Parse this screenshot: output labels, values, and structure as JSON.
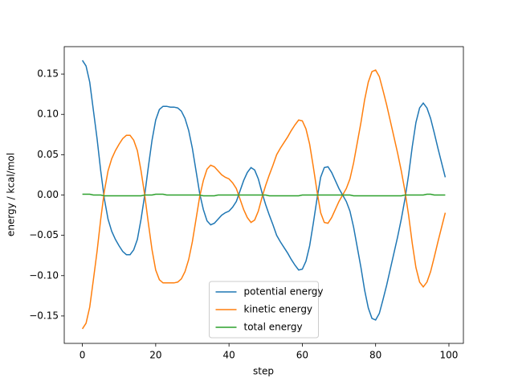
{
  "chart_data": {
    "type": "line",
    "xlabel": "step",
    "ylabel": "energy / kcal/mol",
    "x": [
      0,
      1,
      2,
      3,
      4,
      5,
      6,
      7,
      8,
      9,
      10,
      11,
      12,
      13,
      14,
      15,
      16,
      17,
      18,
      19,
      20,
      21,
      22,
      23,
      24,
      25,
      26,
      27,
      28,
      29,
      30,
      31,
      32,
      33,
      34,
      35,
      36,
      37,
      38,
      39,
      40,
      41,
      42,
      43,
      44,
      45,
      46,
      47,
      48,
      49,
      50,
      51,
      52,
      53,
      54,
      55,
      56,
      57,
      58,
      59,
      60,
      61,
      62,
      63,
      64,
      65,
      66,
      67,
      68,
      69,
      70,
      71,
      72,
      73,
      74,
      75,
      76,
      77,
      78,
      79,
      80,
      81,
      82,
      83,
      84,
      85,
      86,
      87,
      88,
      89,
      90,
      91,
      92,
      93,
      94,
      95,
      96,
      97,
      98,
      99
    ],
    "series": [
      {
        "name": "potential energy",
        "color": "#1f77b4",
        "values": [
          0.167,
          0.16,
          0.14,
          0.105,
          0.07,
          0.03,
          -0.005,
          -0.03,
          -0.045,
          -0.055,
          -0.063,
          -0.07,
          -0.074,
          -0.074,
          -0.068,
          -0.055,
          -0.03,
          0.0,
          0.035,
          0.068,
          0.093,
          0.106,
          0.11,
          0.11,
          0.109,
          0.109,
          0.108,
          0.104,
          0.095,
          0.08,
          0.058,
          0.03,
          0.002,
          -0.018,
          -0.032,
          -0.037,
          -0.035,
          -0.03,
          -0.025,
          -0.022,
          -0.02,
          -0.015,
          -0.008,
          0.005,
          0.018,
          0.028,
          0.034,
          0.031,
          0.02,
          0.003,
          -0.012,
          -0.025,
          -0.037,
          -0.05,
          -0.058,
          -0.065,
          -0.072,
          -0.08,
          -0.087,
          -0.093,
          -0.092,
          -0.082,
          -0.063,
          -0.035,
          -0.005,
          0.022,
          0.034,
          0.035,
          0.028,
          0.018,
          0.008,
          0.0,
          -0.008,
          -0.02,
          -0.04,
          -0.065,
          -0.09,
          -0.118,
          -0.14,
          -0.153,
          -0.155,
          -0.147,
          -0.13,
          -0.112,
          -0.092,
          -0.072,
          -0.052,
          -0.03,
          -0.005,
          0.025,
          0.06,
          0.09,
          0.108,
          0.114,
          0.108,
          0.095,
          0.077,
          0.058,
          0.04,
          0.022
        ]
      },
      {
        "name": "kinetic energy",
        "color": "#ff7f0e",
        "values": [
          -0.166,
          -0.159,
          -0.139,
          -0.105,
          -0.07,
          -0.03,
          0.005,
          0.03,
          0.045,
          0.055,
          0.063,
          0.07,
          0.074,
          0.074,
          0.068,
          0.055,
          0.03,
          0.0,
          -0.035,
          -0.068,
          -0.093,
          -0.105,
          -0.109,
          -0.109,
          -0.109,
          -0.109,
          -0.108,
          -0.104,
          -0.095,
          -0.08,
          -0.058,
          -0.03,
          -0.002,
          0.018,
          0.032,
          0.037,
          0.035,
          0.03,
          0.025,
          0.022,
          0.02,
          0.015,
          0.008,
          -0.005,
          -0.018,
          -0.028,
          -0.034,
          -0.031,
          -0.02,
          -0.003,
          0.012,
          0.025,
          0.037,
          0.05,
          0.058,
          0.065,
          0.072,
          0.08,
          0.087,
          0.093,
          0.092,
          0.082,
          0.063,
          0.035,
          0.005,
          -0.022,
          -0.034,
          -0.035,
          -0.028,
          -0.018,
          -0.008,
          0.0,
          0.008,
          0.02,
          0.04,
          0.065,
          0.09,
          0.118,
          0.14,
          0.153,
          0.155,
          0.147,
          0.13,
          0.112,
          0.092,
          0.072,
          0.052,
          0.03,
          0.005,
          -0.025,
          -0.06,
          -0.09,
          -0.108,
          -0.114,
          -0.108,
          -0.095,
          -0.077,
          -0.058,
          -0.04,
          -0.022
        ]
      },
      {
        "name": "total energy",
        "color": "#2ca02c",
        "values": [
          0.001,
          0.001,
          0.001,
          0.0,
          0.0,
          0.0,
          -0.001,
          -0.001,
          -0.001,
          -0.001,
          -0.001,
          -0.001,
          -0.001,
          -0.001,
          -0.001,
          -0.001,
          -0.001,
          0.0,
          0.0,
          0.0,
          0.001,
          0.001,
          0.001,
          0.0,
          0.0,
          0.0,
          0.0,
          0.0,
          0.0,
          0.0,
          0.0,
          0.0,
          0.0,
          -0.001,
          -0.001,
          -0.001,
          -0.001,
          0.0,
          0.0,
          0.0,
          0.0,
          0.0,
          0.0,
          0.0,
          0.0,
          0.0,
          0.0,
          0.0,
          0.0,
          0.0,
          0.0,
          -0.001,
          -0.001,
          -0.001,
          -0.001,
          -0.001,
          -0.001,
          -0.001,
          -0.001,
          -0.001,
          0.0,
          0.0,
          0.0,
          0.0,
          0.0,
          0.0,
          0.0,
          0.0,
          0.0,
          0.0,
          0.0,
          0.0,
          0.0,
          0.0,
          -0.001,
          -0.001,
          -0.001,
          -0.001,
          -0.001,
          -0.001,
          -0.001,
          -0.001,
          -0.001,
          -0.001,
          -0.001,
          -0.001,
          -0.001,
          -0.001,
          0.0,
          0.0,
          0.0,
          0.0,
          0.0,
          0.0,
          0.001,
          0.001,
          0.0,
          0.0,
          0.0,
          0.0
        ]
      }
    ],
    "xlim": [
      -4.95,
      103.95
    ],
    "xticks": [
      0,
      20,
      40,
      60,
      80,
      100
    ],
    "ylim": [
      -0.184,
      0.184
    ],
    "yticks": [
      {
        "value": -0.15,
        "label": "−0.15"
      },
      {
        "value": -0.1,
        "label": "−0.10"
      },
      {
        "value": -0.05,
        "label": "−0.05"
      },
      {
        "value": 0,
        "label": "0.00"
      },
      0.05,
      {
        "value": 0.1,
        "label": "0.10"
      },
      0.15
    ],
    "legend": "lower center",
    "grid": false
  }
}
